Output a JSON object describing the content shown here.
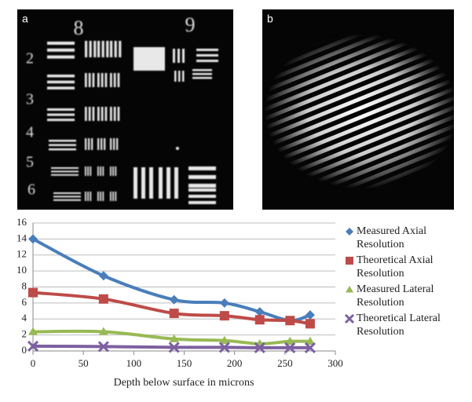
{
  "panels": [
    "a",
    "b"
  ],
  "target_labels": [
    "8",
    "9",
    "2",
    "3",
    "4",
    "5",
    "6"
  ],
  "chart_data": {
    "type": "line",
    "x_label": "Depth below surface in microns",
    "x": [
      0,
      70,
      140,
      190,
      225,
      255,
      275
    ],
    "series": [
      {
        "name": "Measured Axial Resolution",
        "color": "#4a7ebb",
        "marker": "diamond",
        "values": [
          14,
          9.4,
          6.4,
          6.0,
          4.9,
          3.8,
          4.5
        ]
      },
      {
        "name": "Theoretical Axial Resolution",
        "color": "#be4b48",
        "marker": "square",
        "values": [
          7.3,
          6.5,
          4.7,
          4.4,
          3.9,
          3.8,
          3.4
        ]
      },
      {
        "name": "Measured Lateral Resolution",
        "color": "#98b954",
        "marker": "triangle",
        "values": [
          2.4,
          2.4,
          1.5,
          1.3,
          0.9,
          1.2,
          1.2
        ]
      },
      {
        "name": "Theoretical Lateral Resolution",
        "color": "#7d60a0",
        "marker": "x",
        "values": [
          0.6,
          0.55,
          0.45,
          0.45,
          0.4,
          0.4,
          0.4
        ]
      }
    ],
    "xlim": [
      0,
      300
    ],
    "xticks": [
      0,
      50,
      100,
      150,
      200,
      250,
      300
    ],
    "ylim": [
      0,
      16
    ],
    "yticks": [
      0,
      2,
      4,
      6,
      8,
      10,
      12,
      14,
      16
    ],
    "grid": true,
    "legend": "right"
  }
}
